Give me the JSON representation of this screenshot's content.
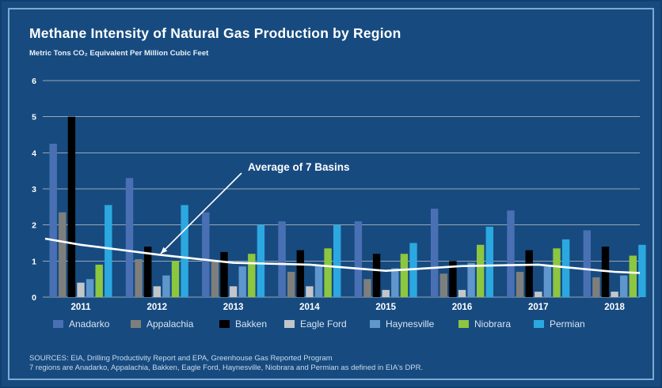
{
  "title": "Methane Intensity of Natural Gas Production by Region",
  "subtitle": "Metric Tons CO₂ Equivalent Per Million Cubic Feet",
  "sources": [
    "SOURCES: EIA, Drilling Productivity Report and EPA, Greenhouse Gas Reported Program",
    "7 regions are Anadarko, Appalachia, Bakken, Eagle Ford, Haynesville, Niobrara and Permian as defined in EIA's DPR."
  ],
  "colors": {
    "background": "#174B80",
    "frame_border": "#7FA9CF",
    "gridline": "#97A6B4",
    "average_line": "#FFFFFF",
    "axis_text": "#FFFFFF"
  },
  "chart_data": {
    "type": "bar",
    "title": "Methane Intensity of Natural Gas Production by Region",
    "ylabel": "Metric Tons CO₂ Equivalent Per Million Cubic Feet",
    "xlabel": "",
    "categories": [
      "2011",
      "2012",
      "2013",
      "2014",
      "2015",
      "2016",
      "2017",
      "2018"
    ],
    "yticks": [
      0,
      1,
      2,
      3,
      4,
      5,
      6
    ],
    "ylim": [
      0,
      6
    ],
    "grid": true,
    "legend_position": "bottom",
    "series": [
      {
        "name": "Anadarko",
        "color": "#4A70B4",
        "values": [
          4.25,
          3.3,
          2.35,
          2.1,
          2.1,
          2.45,
          2.4,
          1.85
        ]
      },
      {
        "name": "Appalachia",
        "color": "#7E7F7D",
        "values": [
          2.35,
          1.05,
          1.0,
          0.7,
          0.5,
          0.65,
          0.7,
          0.55
        ]
      },
      {
        "name": "Bakken",
        "color": "#000000",
        "values": [
          5.0,
          1.4,
          1.25,
          1.3,
          1.2,
          1.0,
          1.3,
          1.4
        ]
      },
      {
        "name": "Eagle Ford",
        "color": "#C2C6C9",
        "values": [
          0.4,
          0.3,
          0.3,
          0.3,
          0.2,
          0.2,
          0.15,
          0.15
        ]
      },
      {
        "name": "Haynesville",
        "color": "#5F96CB",
        "values": [
          0.5,
          0.6,
          0.85,
          0.85,
          0.8,
          0.95,
          0.85,
          0.6
        ]
      },
      {
        "name": "Niobrara",
        "color": "#8DC63F",
        "values": [
          0.9,
          1.0,
          1.2,
          1.35,
          1.2,
          1.45,
          1.35,
          1.15
        ]
      },
      {
        "name": "Permian",
        "color": "#2CA8E0",
        "values": [
          2.55,
          2.55,
          2.0,
          2.0,
          1.5,
          1.95,
          1.6,
          1.45
        ]
      }
    ],
    "average_line": {
      "label": "Average of 7 Basins",
      "color": "#FFFFFF",
      "values": [
        1.45,
        1.18,
        0.95,
        0.9,
        0.73,
        0.86,
        0.9,
        0.7
      ],
      "left_edge": 1.62,
      "right_edge": 0.67
    }
  }
}
